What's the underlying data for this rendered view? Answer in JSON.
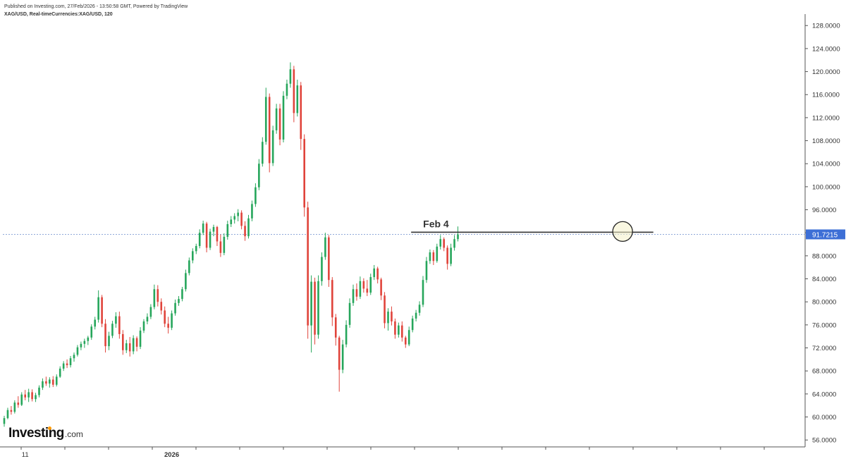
{
  "header": {
    "published": "Published on Investing.com, 27/Feb/2026 - 13:50:58 GMT, Powered by TradingView",
    "symbol": "XAG/USD, Real-timeCurrencies:XAG/USD, 120"
  },
  "logo": {
    "name": "Investing",
    "suffix": ".com"
  },
  "colors": {
    "up": "#26a65b",
    "down": "#e0443b",
    "price_tag": "#3d6fd6",
    "annotation": "#333333",
    "highlight": "#f4f0c8"
  },
  "chart_data": {
    "type": "candlestick",
    "title": "",
    "ylim": [
      54.8,
      129.5
    ],
    "yticks": [
      56,
      60,
      64,
      68,
      72,
      76,
      80,
      84,
      88,
      92,
      96,
      100,
      104,
      108,
      112,
      116,
      120,
      124,
      128
    ],
    "ytick_labels": [
      "56.0000",
      "60.0000",
      "64.0000",
      "68.0000",
      "72.0000",
      "76.0000",
      "80.0000",
      "84.0000",
      "88.0000",
      "92.0000",
      "96.0000",
      "100.0000",
      "104.0000",
      "108.0000",
      "112.0000",
      "116.0000",
      "120.0000",
      "124.0000",
      "128.0000"
    ],
    "xticks": [
      {
        "label": "11",
        "bar": 6
      },
      {
        "label": "2026",
        "bar": 48
      }
    ],
    "current_price": 91.7215,
    "current_price_label": "91.7215",
    "annotation": {
      "label": "Feb 4",
      "level": 92.1,
      "from_bar": 117,
      "to_bar": 186
    },
    "highlight_bar": 177,
    "series": [
      {
        "o": 58.8,
        "h": 60.2,
        "l": 58.3,
        "c": 59.8
      },
      {
        "o": 59.8,
        "h": 61.6,
        "l": 59.6,
        "c": 61.2
      },
      {
        "o": 61.2,
        "h": 61.9,
        "l": 60.4,
        "c": 60.9
      },
      {
        "o": 60.9,
        "h": 62.9,
        "l": 60.6,
        "c": 62.5
      },
      {
        "o": 62.5,
        "h": 63.6,
        "l": 61.6,
        "c": 62.1
      },
      {
        "o": 62.1,
        "h": 64.3,
        "l": 61.9,
        "c": 63.9
      },
      {
        "o": 63.9,
        "h": 64.7,
        "l": 62.9,
        "c": 63.4
      },
      {
        "o": 63.4,
        "h": 64.9,
        "l": 62.6,
        "c": 64.3
      },
      {
        "o": 64.3,
        "h": 64.8,
        "l": 62.7,
        "c": 63.1
      },
      {
        "o": 63.1,
        "h": 64.2,
        "l": 62.6,
        "c": 63.8
      },
      {
        "o": 63.8,
        "h": 65.5,
        "l": 63.4,
        "c": 65.1
      },
      {
        "o": 65.1,
        "h": 66.7,
        "l": 64.7,
        "c": 66.2
      },
      {
        "o": 66.2,
        "h": 67.0,
        "l": 65.4,
        "c": 65.8
      },
      {
        "o": 65.8,
        "h": 66.9,
        "l": 65.1,
        "c": 66.5
      },
      {
        "o": 66.5,
        "h": 67.1,
        "l": 65.2,
        "c": 65.6
      },
      {
        "o": 65.6,
        "h": 67.4,
        "l": 65.3,
        "c": 67.0
      },
      {
        "o": 67.0,
        "h": 68.8,
        "l": 66.8,
        "c": 68.4
      },
      {
        "o": 68.4,
        "h": 69.7,
        "l": 68.0,
        "c": 69.3
      },
      {
        "o": 69.3,
        "h": 70.0,
        "l": 68.5,
        "c": 69.0
      },
      {
        "o": 69.0,
        "h": 70.6,
        "l": 68.6,
        "c": 70.2
      },
      {
        "o": 70.2,
        "h": 71.2,
        "l": 69.6,
        "c": 70.8
      },
      {
        "o": 70.8,
        "h": 72.5,
        "l": 70.5,
        "c": 72.1
      },
      {
        "o": 72.1,
        "h": 73.1,
        "l": 71.6,
        "c": 72.7
      },
      {
        "o": 72.7,
        "h": 73.6,
        "l": 72.0,
        "c": 73.2
      },
      {
        "o": 73.2,
        "h": 74.1,
        "l": 72.5,
        "c": 73.8
      },
      {
        "o": 73.8,
        "h": 76.1,
        "l": 73.4,
        "c": 75.7
      },
      {
        "o": 75.7,
        "h": 77.4,
        "l": 75.2,
        "c": 76.9
      },
      {
        "o": 76.9,
        "h": 82.0,
        "l": 76.4,
        "c": 80.8
      },
      {
        "o": 80.8,
        "h": 81.2,
        "l": 75.6,
        "c": 76.2
      },
      {
        "o": 76.2,
        "h": 77.0,
        "l": 71.2,
        "c": 72.3
      },
      {
        "o": 72.3,
        "h": 74.8,
        "l": 71.6,
        "c": 74.1
      },
      {
        "o": 74.1,
        "h": 76.7,
        "l": 73.7,
        "c": 76.2
      },
      {
        "o": 76.2,
        "h": 78.2,
        "l": 75.5,
        "c": 77.5
      },
      {
        "o": 77.5,
        "h": 78.3,
        "l": 73.6,
        "c": 74.4
      },
      {
        "o": 74.4,
        "h": 75.1,
        "l": 70.8,
        "c": 71.6
      },
      {
        "o": 71.6,
        "h": 73.4,
        "l": 71.1,
        "c": 72.8
      },
      {
        "o": 72.8,
        "h": 73.9,
        "l": 70.5,
        "c": 71.4
      },
      {
        "o": 71.4,
        "h": 74.2,
        "l": 70.9,
        "c": 73.7
      },
      {
        "o": 73.7,
        "h": 74.0,
        "l": 71.4,
        "c": 72.2
      },
      {
        "o": 72.2,
        "h": 75.6,
        "l": 71.8,
        "c": 75.0
      },
      {
        "o": 75.0,
        "h": 77.0,
        "l": 74.6,
        "c": 76.6
      },
      {
        "o": 76.6,
        "h": 78.0,
        "l": 76.1,
        "c": 77.4
      },
      {
        "o": 77.4,
        "h": 79.6,
        "l": 77.0,
        "c": 79.1
      },
      {
        "o": 79.1,
        "h": 83.0,
        "l": 78.7,
        "c": 82.2
      },
      {
        "o": 82.2,
        "h": 82.9,
        "l": 79.2,
        "c": 80.0
      },
      {
        "o": 80.0,
        "h": 80.6,
        "l": 77.8,
        "c": 78.5
      },
      {
        "o": 78.5,
        "h": 79.2,
        "l": 75.6,
        "c": 76.2
      },
      {
        "o": 76.2,
        "h": 77.4,
        "l": 74.5,
        "c": 75.5
      },
      {
        "o": 75.5,
        "h": 78.5,
        "l": 75.1,
        "c": 78.0
      },
      {
        "o": 78.0,
        "h": 80.4,
        "l": 77.6,
        "c": 79.8
      },
      {
        "o": 79.8,
        "h": 81.0,
        "l": 79.3,
        "c": 80.5
      },
      {
        "o": 80.5,
        "h": 82.6,
        "l": 80.1,
        "c": 82.2
      },
      {
        "o": 82.2,
        "h": 85.6,
        "l": 81.8,
        "c": 85.0
      },
      {
        "o": 85.0,
        "h": 87.7,
        "l": 84.6,
        "c": 87.2
      },
      {
        "o": 87.2,
        "h": 89.3,
        "l": 86.7,
        "c": 88.8
      },
      {
        "o": 88.8,
        "h": 90.1,
        "l": 88.3,
        "c": 89.7
      },
      {
        "o": 89.7,
        "h": 92.6,
        "l": 89.3,
        "c": 92.0
      },
      {
        "o": 92.0,
        "h": 94.1,
        "l": 91.6,
        "c": 93.6
      },
      {
        "o": 93.6,
        "h": 93.9,
        "l": 88.6,
        "c": 89.4
      },
      {
        "o": 89.4,
        "h": 92.7,
        "l": 89.0,
        "c": 92.2
      },
      {
        "o": 92.2,
        "h": 93.4,
        "l": 91.4,
        "c": 93.0
      },
      {
        "o": 93.0,
        "h": 93.2,
        "l": 89.7,
        "c": 90.5
      },
      {
        "o": 90.5,
        "h": 91.7,
        "l": 87.8,
        "c": 88.5
      },
      {
        "o": 88.5,
        "h": 91.9,
        "l": 88.1,
        "c": 91.3
      },
      {
        "o": 91.3,
        "h": 94.1,
        "l": 90.8,
        "c": 93.5
      },
      {
        "o": 93.5,
        "h": 94.9,
        "l": 93.0,
        "c": 94.3
      },
      {
        "o": 94.3,
        "h": 95.4,
        "l": 93.6,
        "c": 94.9
      },
      {
        "o": 94.9,
        "h": 96.1,
        "l": 94.0,
        "c": 95.5
      },
      {
        "o": 95.5,
        "h": 95.9,
        "l": 92.6,
        "c": 93.2
      },
      {
        "o": 93.2,
        "h": 94.0,
        "l": 90.6,
        "c": 91.4
      },
      {
        "o": 91.4,
        "h": 95.1,
        "l": 91.0,
        "c": 94.5
      },
      {
        "o": 94.5,
        "h": 97.6,
        "l": 94.0,
        "c": 97.0
      },
      {
        "o": 97.0,
        "h": 100.6,
        "l": 96.5,
        "c": 99.9
      },
      {
        "o": 99.9,
        "h": 104.8,
        "l": 99.4,
        "c": 104.0
      },
      {
        "o": 104.0,
        "h": 108.6,
        "l": 103.5,
        "c": 107.8
      },
      {
        "o": 107.8,
        "h": 117.2,
        "l": 107.3,
        "c": 115.6
      },
      {
        "o": 115.6,
        "h": 116.2,
        "l": 102.5,
        "c": 104.1
      },
      {
        "o": 104.1,
        "h": 110.6,
        "l": 103.6,
        "c": 109.8
      },
      {
        "o": 109.8,
        "h": 114.4,
        "l": 109.2,
        "c": 113.6
      },
      {
        "o": 113.6,
        "h": 114.4,
        "l": 107.2,
        "c": 108.2
      },
      {
        "o": 108.2,
        "h": 116.6,
        "l": 107.7,
        "c": 115.8
      },
      {
        "o": 115.8,
        "h": 118.6,
        "l": 115.2,
        "c": 117.9
      },
      {
        "o": 117.9,
        "h": 121.6,
        "l": 117.2,
        "c": 120.4
      },
      {
        "o": 120.4,
        "h": 121.0,
        "l": 111.2,
        "c": 112.8
      },
      {
        "o": 112.8,
        "h": 118.6,
        "l": 112.2,
        "c": 117.6
      },
      {
        "o": 117.6,
        "h": 118.2,
        "l": 106.4,
        "c": 108.3
      },
      {
        "o": 108.3,
        "h": 109.1,
        "l": 94.8,
        "c": 96.4
      },
      {
        "o": 96.4,
        "h": 97.4,
        "l": 73.6,
        "c": 75.9
      },
      {
        "o": 75.9,
        "h": 84.6,
        "l": 71.2,
        "c": 83.5
      },
      {
        "o": 83.5,
        "h": 84.2,
        "l": 72.6,
        "c": 74.3
      },
      {
        "o": 74.3,
        "h": 84.6,
        "l": 73.6,
        "c": 83.6
      },
      {
        "o": 83.6,
        "h": 88.6,
        "l": 82.8,
        "c": 87.8
      },
      {
        "o": 87.8,
        "h": 92.0,
        "l": 87.3,
        "c": 91.2
      },
      {
        "o": 91.2,
        "h": 91.6,
        "l": 82.6,
        "c": 83.8
      },
      {
        "o": 83.8,
        "h": 84.3,
        "l": 75.8,
        "c": 77.3
      },
      {
        "o": 77.3,
        "h": 77.9,
        "l": 72.4,
        "c": 73.8
      },
      {
        "o": 73.8,
        "h": 74.1,
        "l": 64.4,
        "c": 68.2
      },
      {
        "o": 68.2,
        "h": 73.4,
        "l": 67.6,
        "c": 72.6
      },
      {
        "o": 72.6,
        "h": 76.8,
        "l": 72.1,
        "c": 76.0
      },
      {
        "o": 76.0,
        "h": 80.6,
        "l": 75.5,
        "c": 79.8
      },
      {
        "o": 79.8,
        "h": 83.0,
        "l": 79.3,
        "c": 82.2
      },
      {
        "o": 82.2,
        "h": 83.2,
        "l": 80.2,
        "c": 80.9
      },
      {
        "o": 80.9,
        "h": 84.4,
        "l": 80.5,
        "c": 83.6
      },
      {
        "o": 83.6,
        "h": 84.1,
        "l": 81.6,
        "c": 82.3
      },
      {
        "o": 82.3,
        "h": 83.8,
        "l": 81.0,
        "c": 81.6
      },
      {
        "o": 81.6,
        "h": 84.9,
        "l": 81.2,
        "c": 84.3
      },
      {
        "o": 84.3,
        "h": 86.4,
        "l": 83.8,
        "c": 85.8
      },
      {
        "o": 85.8,
        "h": 86.1,
        "l": 83.2,
        "c": 83.9
      },
      {
        "o": 83.9,
        "h": 84.2,
        "l": 80.3,
        "c": 81.1
      },
      {
        "o": 81.1,
        "h": 81.7,
        "l": 75.4,
        "c": 76.3
      },
      {
        "o": 76.3,
        "h": 78.9,
        "l": 75.0,
        "c": 78.3
      },
      {
        "o": 78.3,
        "h": 79.2,
        "l": 75.9,
        "c": 76.6
      },
      {
        "o": 76.6,
        "h": 77.1,
        "l": 73.6,
        "c": 74.3
      },
      {
        "o": 74.3,
        "h": 76.4,
        "l": 73.8,
        "c": 75.9
      },
      {
        "o": 75.9,
        "h": 76.6,
        "l": 73.1,
        "c": 73.8
      },
      {
        "o": 73.8,
        "h": 74.1,
        "l": 72.0,
        "c": 72.6
      },
      {
        "o": 72.6,
        "h": 75.7,
        "l": 72.3,
        "c": 75.1
      },
      {
        "o": 75.1,
        "h": 77.6,
        "l": 74.7,
        "c": 77.1
      },
      {
        "o": 77.1,
        "h": 78.6,
        "l": 76.6,
        "c": 78.1
      },
      {
        "o": 78.1,
        "h": 80.1,
        "l": 77.6,
        "c": 79.5
      },
      {
        "o": 79.5,
        "h": 84.5,
        "l": 79.1,
        "c": 83.8
      },
      {
        "o": 83.8,
        "h": 87.8,
        "l": 83.3,
        "c": 87.1
      },
      {
        "o": 87.1,
        "h": 89.1,
        "l": 86.6,
        "c": 88.6
      },
      {
        "o": 88.6,
        "h": 89.0,
        "l": 86.4,
        "c": 87.1
      },
      {
        "o": 87.1,
        "h": 90.1,
        "l": 86.8,
        "c": 89.6
      },
      {
        "o": 89.6,
        "h": 91.6,
        "l": 89.1,
        "c": 90.9
      },
      {
        "o": 90.9,
        "h": 91.2,
        "l": 88.8,
        "c": 89.4
      },
      {
        "o": 89.4,
        "h": 89.8,
        "l": 85.6,
        "c": 86.6
      },
      {
        "o": 86.6,
        "h": 90.1,
        "l": 86.2,
        "c": 89.4
      },
      {
        "o": 89.4,
        "h": 91.6,
        "l": 88.9,
        "c": 90.9
      },
      {
        "o": 90.9,
        "h": 93.1,
        "l": 90.5,
        "c": 91.72
      }
    ]
  }
}
